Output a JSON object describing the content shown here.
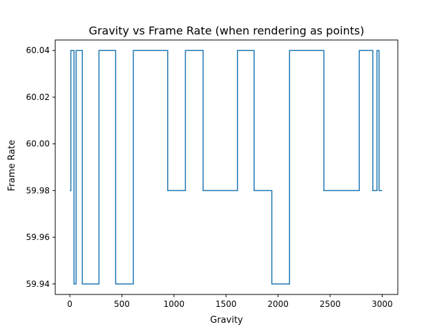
{
  "chart_data": {
    "type": "line",
    "title": "Gravity vs Frame Rate (when rendering as points)",
    "xlabel": "Gravity",
    "ylabel": "Frame Rate",
    "xlim": [
      -140,
      3150
    ],
    "ylim": [
      59.9355,
      60.0445
    ],
    "xticks": [
      0,
      500,
      1000,
      1500,
      2000,
      2500,
      3000
    ],
    "xtick_labels": [
      "0",
      "500",
      "1000",
      "1500",
      "2000",
      "2500",
      "3000"
    ],
    "yticks": [
      59.94,
      59.96,
      59.98,
      60.0,
      60.02,
      60.04
    ],
    "ytick_labels": [
      "59.94",
      "59.96",
      "59.98",
      "60.00",
      "60.02",
      "60.04"
    ],
    "grid": false,
    "line_style": "steps",
    "series": [
      {
        "color": "#1f77b4",
        "x": [
          0,
          10,
          20,
          40,
          60,
          120,
          280,
          440,
          610,
          940,
          1110,
          1280,
          1610,
          1770,
          1940,
          2110,
          2440,
          2610,
          2780,
          2910,
          2950,
          2970,
          3000
        ],
        "y": [
          59.98,
          60.04,
          60.04,
          59.94,
          60.04,
          59.94,
          60.04,
          59.94,
          60.04,
          59.98,
          60.04,
          59.98,
          60.04,
          59.98,
          59.94,
          60.04,
          59.98,
          59.98,
          60.04,
          59.98,
          60.04,
          59.98,
          59.98
        ]
      }
    ]
  }
}
